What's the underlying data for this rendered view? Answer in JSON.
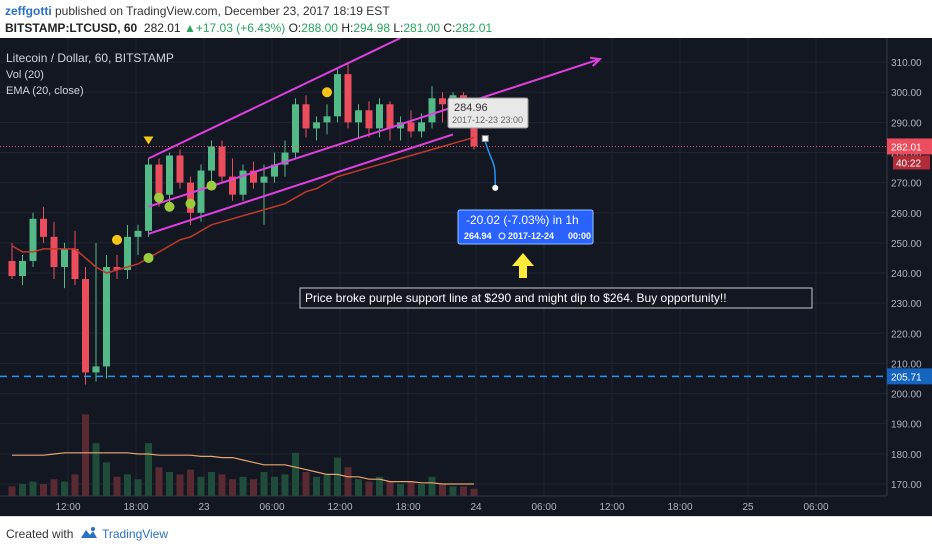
{
  "header": {
    "user": "zeffgotti",
    "published": " published on TradingView.com, December 23, 2017 18:19 EST",
    "symbol": "BITSTAMP:LTCUSD, 60",
    "last": "282.01",
    "change": "+17.03 (+6.43%)",
    "o_label": "O:",
    "o_value": "288.00",
    "h_label": "H:",
    "h_value": "294.98",
    "l_label": "L:",
    "l_value": "281.00",
    "c_label": "C:",
    "c_value": "282.01"
  },
  "legend": {
    "title": "Litecoin / Dollar, 60, BITSTAMP",
    "vol": "Vol (20)",
    "ema": "EMA (20, close)"
  },
  "footer": {
    "created": "Created with",
    "brand": "TradingView"
  },
  "colors": {
    "background": "#131722",
    "up": "#53b987",
    "down": "#eb4d5c",
    "ema": "#c0392b",
    "channel": "#e040e0",
    "dashed": "#2196f3",
    "label_blue": "#2962ff",
    "arrow_yellow": "#ffeb3b"
  },
  "chart_data": {
    "type": "candlestick",
    "y_ticks": [
      "310.00",
      "300.00",
      "290.00",
      "280.00",
      "270.00",
      "260.00",
      "250.00",
      "240.00",
      "230.00",
      "220.00",
      "210.00",
      "200.00",
      "190.00",
      "180.00",
      "170.00"
    ],
    "x_ticks": [
      "12:00",
      "18:00",
      "23",
      "06:00",
      "12:00",
      "18:00",
      "24",
      "06:00",
      "12:00",
      "18:00",
      "25",
      "06:00"
    ],
    "ylim": [
      166,
      318
    ],
    "candles": [
      {
        "o": 244,
        "h": 250,
        "l": 238,
        "c": 239
      },
      {
        "o": 239,
        "h": 246,
        "l": 236,
        "c": 244
      },
      {
        "o": 244,
        "h": 260,
        "l": 242,
        "c": 258
      },
      {
        "o": 258,
        "h": 262,
        "l": 250,
        "c": 252
      },
      {
        "o": 252,
        "h": 257,
        "l": 238,
        "c": 242
      },
      {
        "o": 242,
        "h": 250,
        "l": 235,
        "c": 248
      },
      {
        "o": 248,
        "h": 254,
        "l": 236,
        "c": 238
      },
      {
        "o": 238,
        "h": 242,
        "l": 203,
        "c": 207
      },
      {
        "o": 207,
        "h": 250,
        "l": 204,
        "c": 209
      },
      {
        "o": 209,
        "h": 246,
        "l": 205,
        "c": 242
      },
      {
        "o": 242,
        "h": 246,
        "l": 238,
        "c": 241
      },
      {
        "o": 241,
        "h": 256,
        "l": 238,
        "c": 252
      },
      {
        "o": 252,
        "h": 256,
        "l": 246,
        "c": 254
      },
      {
        "o": 254,
        "h": 278,
        "l": 252,
        "c": 276
      },
      {
        "o": 276,
        "h": 278,
        "l": 262,
        "c": 266
      },
      {
        "o": 266,
        "h": 280,
        "l": 263,
        "c": 279
      },
      {
        "o": 279,
        "h": 281,
        "l": 268,
        "c": 270
      },
      {
        "o": 270,
        "h": 272,
        "l": 256,
        "c": 260
      },
      {
        "o": 260,
        "h": 276,
        "l": 257,
        "c": 274
      },
      {
        "o": 274,
        "h": 284,
        "l": 270,
        "c": 282
      },
      {
        "o": 282,
        "h": 284,
        "l": 270,
        "c": 272
      },
      {
        "o": 272,
        "h": 278,
        "l": 264,
        "c": 266
      },
      {
        "o": 266,
        "h": 276,
        "l": 264,
        "c": 274
      },
      {
        "o": 274,
        "h": 277,
        "l": 268,
        "c": 270
      },
      {
        "o": 270,
        "h": 276,
        "l": 256,
        "c": 272
      },
      {
        "o": 272,
        "h": 280,
        "l": 270,
        "c": 276
      },
      {
        "o": 276,
        "h": 284,
        "l": 272,
        "c": 280
      },
      {
        "o": 280,
        "h": 298,
        "l": 278,
        "c": 296
      },
      {
        "o": 296,
        "h": 299,
        "l": 285,
        "c": 288
      },
      {
        "o": 288,
        "h": 292,
        "l": 284,
        "c": 290
      },
      {
        "o": 290,
        "h": 296,
        "l": 286,
        "c": 292
      },
      {
        "o": 292,
        "h": 308,
        "l": 290,
        "c": 306
      },
      {
        "o": 306,
        "h": 310,
        "l": 288,
        "c": 290
      },
      {
        "o": 290,
        "h": 296,
        "l": 285,
        "c": 294
      },
      {
        "o": 294,
        "h": 297,
        "l": 285,
        "c": 288
      },
      {
        "o": 288,
        "h": 298,
        "l": 285,
        "c": 296
      },
      {
        "o": 296,
        "h": 297,
        "l": 284,
        "c": 288
      },
      {
        "o": 288,
        "h": 292,
        "l": 284,
        "c": 290
      },
      {
        "o": 290,
        "h": 294,
        "l": 285,
        "c": 287
      },
      {
        "o": 287,
        "h": 293,
        "l": 285,
        "c": 290
      },
      {
        "o": 290,
        "h": 302,
        "l": 288,
        "c": 298
      },
      {
        "o": 298,
        "h": 300,
        "l": 290,
        "c": 296
      },
      {
        "o": 296,
        "h": 300,
        "l": 294,
        "c": 299
      },
      {
        "o": 299,
        "h": 300,
        "l": 296,
        "c": 298
      },
      {
        "o": 288,
        "h": 294.98,
        "l": 281,
        "c": 282.01
      }
    ],
    "ema": [
      249,
      247,
      247,
      248,
      248,
      248,
      248,
      245,
      242,
      240,
      241,
      242,
      243,
      245,
      247,
      249,
      251,
      252,
      254,
      256,
      257,
      258,
      259,
      260,
      261,
      262,
      263,
      265,
      267,
      268,
      270,
      272,
      273,
      274,
      275,
      276,
      277,
      278,
      279,
      280,
      281,
      282,
      283,
      284,
      285
    ],
    "volume": [
      4,
      5,
      6,
      5,
      7,
      6,
      9,
      34,
      22,
      14,
      8,
      9,
      7,
      22,
      12,
      10,
      9,
      11,
      8,
      10,
      9,
      7,
      8,
      7,
      10,
      8,
      9,
      18,
      10,
      8,
      9,
      16,
      12,
      7,
      6,
      8,
      6,
      5,
      6,
      5,
      8,
      5,
      4,
      4,
      3
    ],
    "vol_ma": [
      17,
      17,
      17,
      17,
      17.5,
      18,
      18,
      18,
      18,
      18,
      18,
      18,
      17.5,
      17.5,
      17,
      17,
      17,
      17,
      16.5,
      16.5,
      16,
      16,
      15,
      14,
      13,
      13,
      13,
      12,
      11,
      10,
      9,
      9,
      8,
      8,
      7,
      7,
      6,
      6,
      6,
      5.5,
      5.5,
      5,
      5,
      5,
      5
    ],
    "last_price_label": "282.01",
    "countdown_label": "40:22",
    "support_label": "205.71",
    "support_value": 205.71,
    "projection": {
      "top_value_label": "284.96",
      "top_date": "2017-12-23 23:00",
      "change_label": "-20.02 (-7.03%) in 1h",
      "end_value": "264.94",
      "end_date": "2017-12-24",
      "end_time": "00:00",
      "from_value": 284.96,
      "to_value": 264.94
    },
    "annotation": "Price broke purple support line at $290 and might dip to $264. Buy opportunity!!",
    "markers": {
      "yellow_dots": [
        {
          "i": 10,
          "v": 251
        },
        {
          "i": 30,
          "v": 300
        }
      ],
      "green_dots": [
        {
          "i": 13,
          "v": 245
        },
        {
          "i": 14,
          "v": 265
        },
        {
          "i": 15,
          "v": 262
        },
        {
          "i": 17,
          "v": 263
        },
        {
          "i": 19,
          "v": 269
        }
      ],
      "down_triangle": {
        "i": 13,
        "v": 282
      }
    },
    "channel": {
      "upper": [
        {
          "i": 13,
          "v": 278
        },
        {
          "i": 37,
          "v": 318
        }
      ],
      "lower": [
        {
          "i": 13,
          "v": 253
        },
        {
          "i": 42,
          "v": 286
        }
      ],
      "middle": [
        {
          "i": 13,
          "v": 262
        },
        {
          "i": 56,
          "v": 311
        }
      ]
    }
  }
}
